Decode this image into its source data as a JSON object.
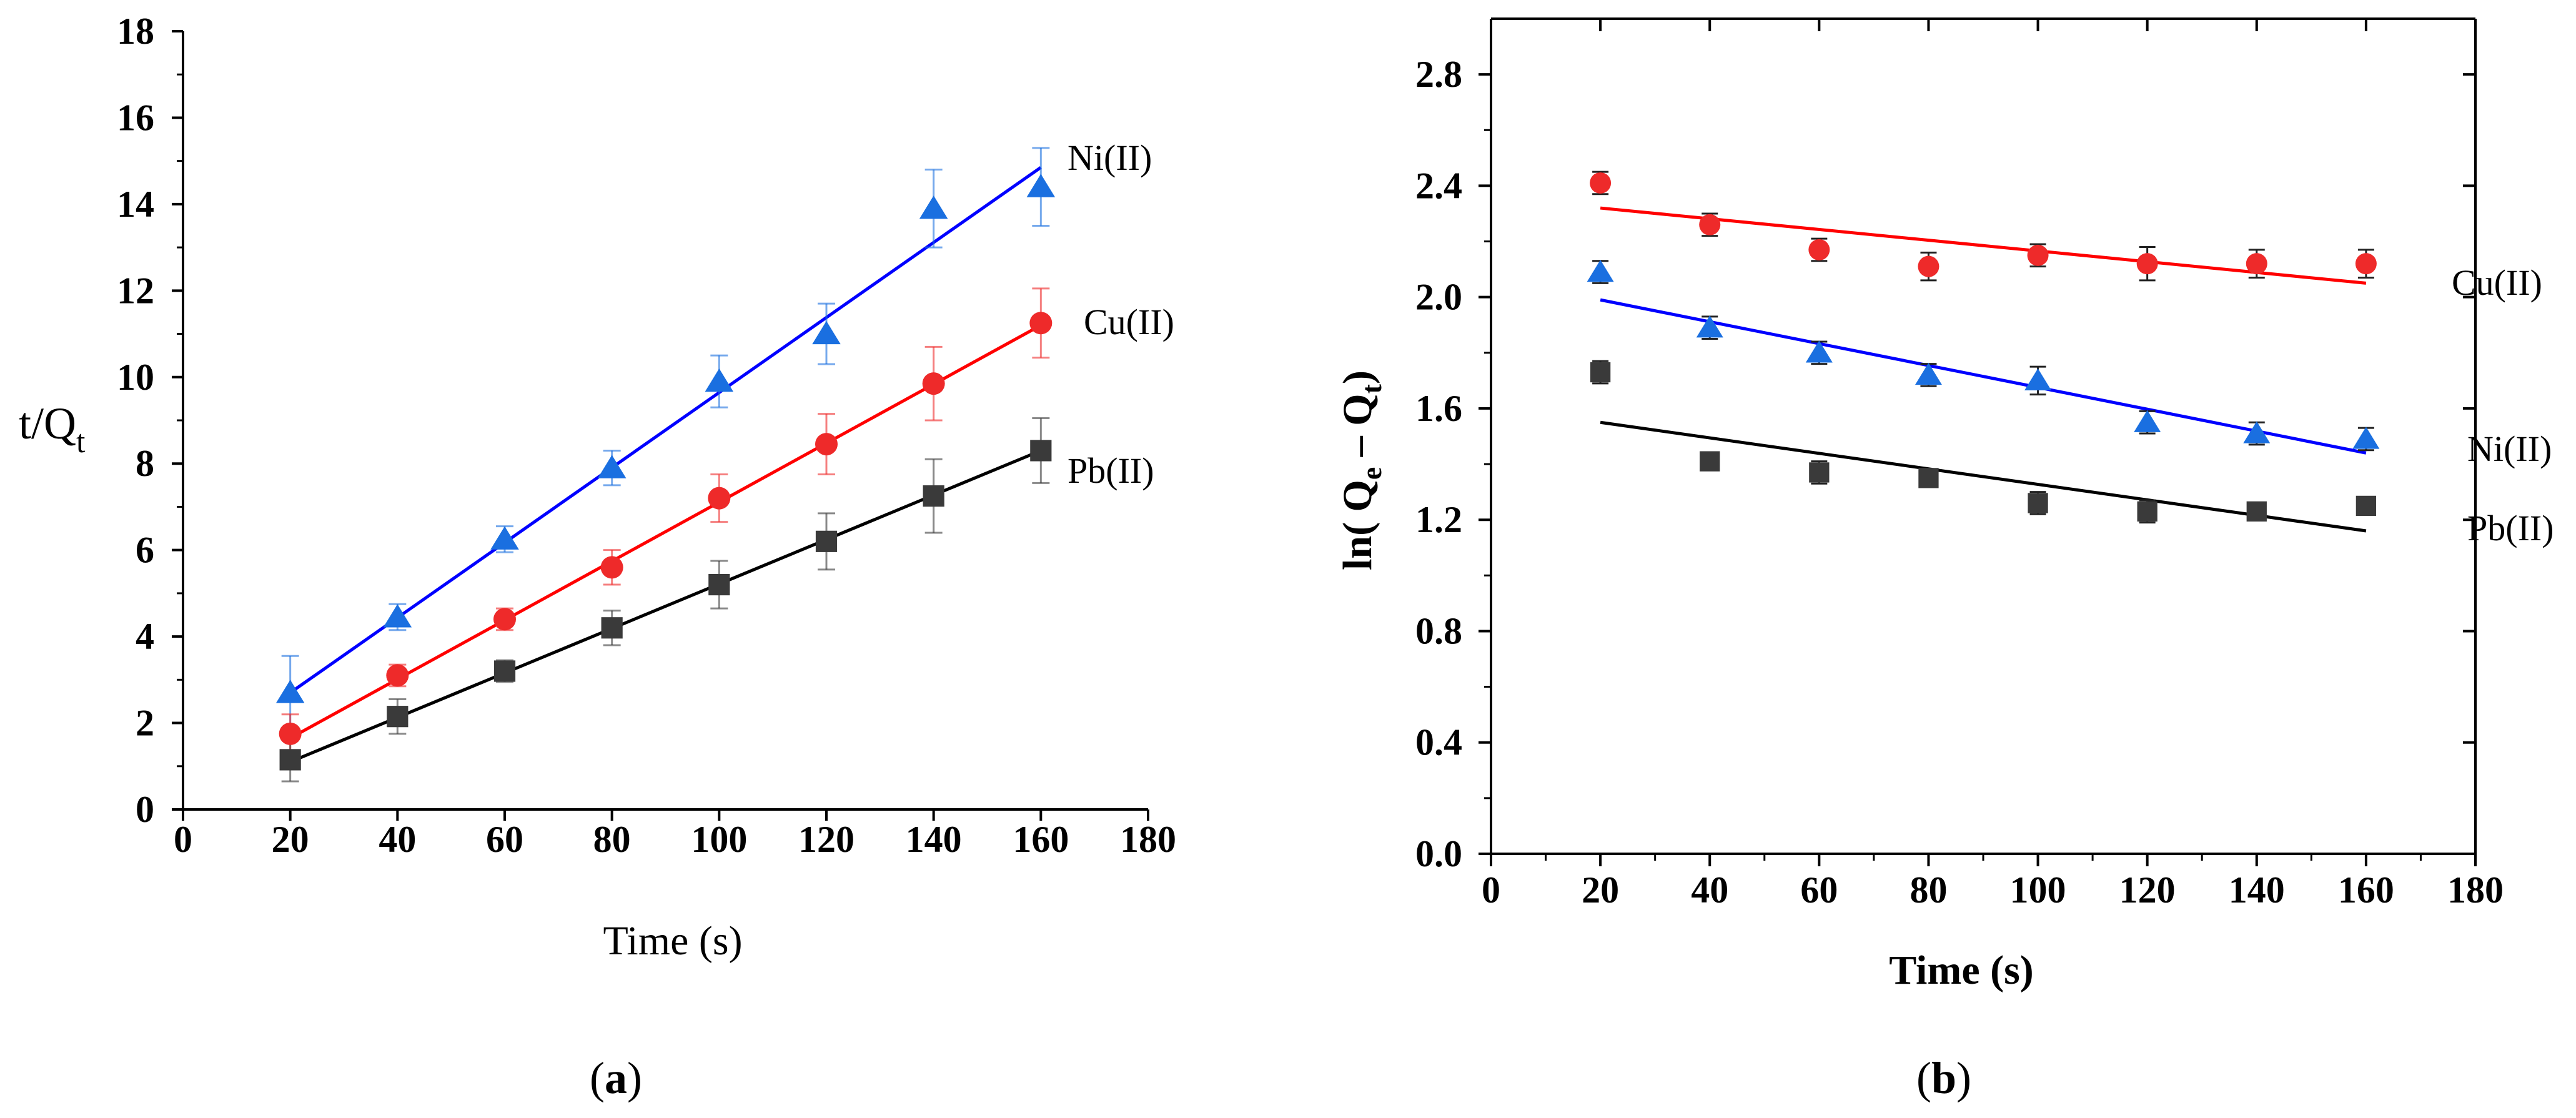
{
  "chart_data": [
    {
      "type": "scatter",
      "panel_label": "a",
      "xlabel": "Time (s)",
      "ylabel": {
        "main": "t/Q",
        "sub": "t"
      },
      "xlim": [
        0,
        180
      ],
      "ylim": [
        0,
        18
      ],
      "xticks": [
        "0",
        "20",
        "40",
        "60",
        "80",
        "100",
        "120",
        "140",
        "160",
        "180"
      ],
      "yticks": [
        "0",
        "2",
        "4",
        "6",
        "8",
        "10",
        "12",
        "14",
        "16",
        "18"
      ],
      "x": [
        20,
        40,
        60,
        80,
        100,
        120,
        140,
        160
      ],
      "series": [
        {
          "name": "Ni(II)",
          "color": "#1a6fe0",
          "line_color": "#0000ff",
          "marker": "triangle",
          "values": [
            2.7,
            4.45,
            6.25,
            7.9,
            9.9,
            11.0,
            13.9,
            14.4
          ],
          "errors": [
            0.85,
            0.3,
            0.3,
            0.4,
            0.6,
            0.7,
            0.9,
            0.9
          ],
          "fit": {
            "x": [
              20,
              160
            ],
            "y": [
              2.7,
              14.85
            ]
          }
        },
        {
          "name": "Cu(II)",
          "color": "#ee2a2a",
          "line_color": "#ff0000",
          "marker": "circle",
          "values": [
            1.75,
            3.1,
            4.4,
            5.6,
            7.2,
            8.45,
            9.85,
            11.25
          ],
          "errors": [
            0.45,
            0.25,
            0.25,
            0.4,
            0.55,
            0.7,
            0.85,
            0.8
          ],
          "fit": {
            "x": [
              20,
              160
            ],
            "y": [
              1.65,
              11.2
            ]
          }
        },
        {
          "name": "Pb(II)",
          "color": "#3a3a3a",
          "line_color": "#000000",
          "marker": "square",
          "values": [
            1.15,
            2.15,
            3.2,
            4.2,
            5.2,
            6.2,
            7.25,
            8.3
          ],
          "errors": [
            0.5,
            0.4,
            0.25,
            0.4,
            0.55,
            0.65,
            0.85,
            0.75
          ],
          "fit": {
            "x": [
              20,
              160
            ],
            "y": [
              1.1,
              8.3
            ]
          }
        }
      ]
    },
    {
      "type": "scatter",
      "panel_label": "b",
      "xlabel": "Time (s)",
      "ylabel": {
        "main": "ln( Q",
        "sub1": "e",
        "mid": " – Q",
        "sub2": "t",
        "end": ")"
      },
      "xlim": [
        0,
        180
      ],
      "ylim": [
        0,
        3.0
      ],
      "xticks": [
        "0",
        "20",
        "40",
        "60",
        "80",
        "100",
        "120",
        "140",
        "160",
        "180"
      ],
      "yticks": [
        "0.0",
        "0.4",
        "0.8",
        "1.2",
        "1.6",
        "2.0",
        "2.4",
        "2.8"
      ],
      "x": [
        20,
        40,
        60,
        80,
        100,
        120,
        140,
        160
      ],
      "series": [
        {
          "name": "Cu(II)",
          "color": "#ee2a2a",
          "line_color": "#ff0000",
          "marker": "circle",
          "values": [
            2.41,
            2.26,
            2.17,
            2.11,
            2.15,
            2.12,
            2.12,
            2.12
          ],
          "errors": [
            0.04,
            0.04,
            0.04,
            0.05,
            0.04,
            0.06,
            0.05,
            0.05
          ],
          "fit": {
            "x": [
              20,
              160
            ],
            "y": [
              2.32,
              2.05
            ]
          }
        },
        {
          "name": "Ni(II)",
          "color": "#1a6fe0",
          "line_color": "#0000ff",
          "marker": "triangle",
          "values": [
            2.09,
            1.89,
            1.8,
            1.72,
            1.7,
            1.55,
            1.51,
            1.49
          ],
          "errors": [
            0.04,
            0.04,
            0.04,
            0.04,
            0.05,
            0.04,
            0.04,
            0.04
          ],
          "fit": {
            "x": [
              20,
              160
            ],
            "y": [
              1.99,
              1.44
            ]
          }
        },
        {
          "name": "Pb(II)",
          "color": "#3a3a3a",
          "line_color": "#000000",
          "marker": "square",
          "values": [
            1.73,
            1.41,
            1.37,
            1.35,
            1.26,
            1.23,
            1.23,
            1.25
          ],
          "errors": [
            0.04,
            0.03,
            0.04,
            0.03,
            0.04,
            0.04,
            0.03,
            0.03
          ],
          "fit": {
            "x": [
              20,
              160
            ],
            "y": [
              1.55,
              1.16
            ]
          }
        }
      ]
    }
  ]
}
